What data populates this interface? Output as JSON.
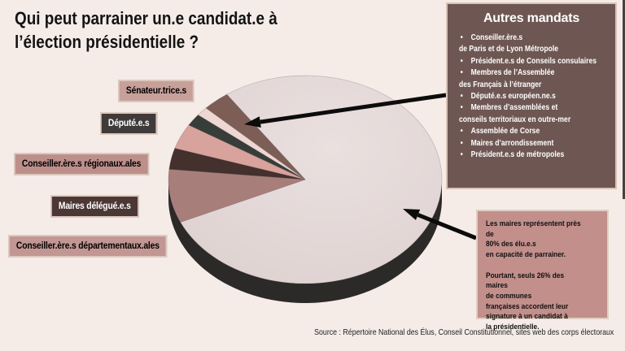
{
  "title": {
    "line1": "Qui peut parrainer un.e candidat.e à",
    "line2": "l’élection présidentielle ?"
  },
  "slice_labels": [
    {
      "label": "Sénateur.trice.s",
      "bg": "#c7a09a",
      "fg": "#000000"
    },
    {
      "label": "Député.e.s",
      "bg": "#3f3b3a",
      "fg": "#ffffff"
    },
    {
      "label": "Conseiller.ère.s régionaux.ales",
      "bg": "#bd8f8b",
      "fg": "#000000"
    },
    {
      "label": "Maires délégué.e.s",
      "bg": "#4b3734",
      "fg": "#ffffff"
    },
    {
      "label": "Conseiller.ère.s départementaux.ales",
      "bg": "#c29793",
      "fg": "#000000"
    }
  ],
  "autres_mandats": {
    "title": "Autres mandats",
    "bg": "#6e5753",
    "items": [
      {
        "bullet": true,
        "text": "Conseiller.ère.s"
      },
      {
        "bullet": false,
        "text": "de Paris et de Lyon Métropole"
      },
      {
        "bullet": true,
        "text": "Président.e.s de Conseils consulaires"
      },
      {
        "bullet": true,
        "text": "Membres de l’Assemblée"
      },
      {
        "bullet": false,
        "text": "des Français à l’étranger"
      },
      {
        "bullet": true,
        "text": "Député.e.s européen.ne.s"
      },
      {
        "bullet": true,
        "text": "Membres d’assemblées et"
      },
      {
        "bullet": false,
        "text": "conseils territoriaux en outre-mer"
      },
      {
        "bullet": true,
        "text": "Assemblée de Corse"
      },
      {
        "bullet": true,
        "text": "Maires d’arrondissement"
      },
      {
        "bullet": true,
        "text": "Président.e.s de métropoles"
      }
    ]
  },
  "callout": {
    "bg": "#c28f8b",
    "text": "Les maires représentent près de\n80% des élu.e.s\nen capacité de parrainer.\n\nPourtant, seuls 26% des maires\nde communes\nfrançaises accordent leur\nsignature à un candidat à\nla présidentielle."
  },
  "source": "Source : Répertoire National des Élus, Conseil Constitutionnel, sites web des corps électoraux",
  "colors": {
    "background": "#f5ece8",
    "arrow": "#0c0c0c",
    "pie_side": "#2c2a29",
    "pie_rim_stroke": "rgba(110,90,88,0.35)"
  },
  "chart_data": {
    "type": "pie",
    "style": "3d",
    "title": "Qui peut parrainer un.e candidat.e à l’élection présidentielle ?",
    "unit": "% des élu.e.s en capacité de parrainer (estimation visuelle)",
    "legend_position": "labels left, callout boxes right",
    "slices": [
      {
        "label": "Maires",
        "value": 78,
        "color": "#e4dad9"
      },
      {
        "label": "Conseiller.ère.s départementaux.ales",
        "value": 8.3,
        "color": "#a87e7b"
      },
      {
        "label": "Maires délégué.e.s",
        "value": 3.3,
        "color": "#44302c"
      },
      {
        "label": "Conseiller.ère.s régionaux.ales",
        "value": 3.9,
        "color": "#d8a29d"
      },
      {
        "label": "Député.e.s",
        "value": 1.9,
        "color": "#373d39"
      },
      {
        "label": "Sénateur.trice.s",
        "value": 1.4,
        "color": "#eed7d3"
      },
      {
        "label": "Autres mandats",
        "value": 3.2,
        "color": "#7d5e56"
      }
    ],
    "annotations": [
      {
        "text": "Les maires représentent près de 80% des élu.e.s en capacité de parrainer. Pourtant, seuls 26% des maires de communes françaises accordent leur signature à un candidat à la présidentielle.",
        "points_to": "Maires"
      },
      {
        "text": "Autres mandats : Conseiller.ère.s de Paris et de Lyon Métropole ; Président.e.s de Conseils consulaires ; Membres de l’Assemblée des Français à l’étranger ; Député.e.s européen.ne.s ; Membres d’assemblées et conseils territoriaux en outre-mer ; Assemblée de Corse ; Maires d’arrondissement ; Président.e.s de métropoles",
        "points_to": "Autres mandats"
      }
    ]
  }
}
